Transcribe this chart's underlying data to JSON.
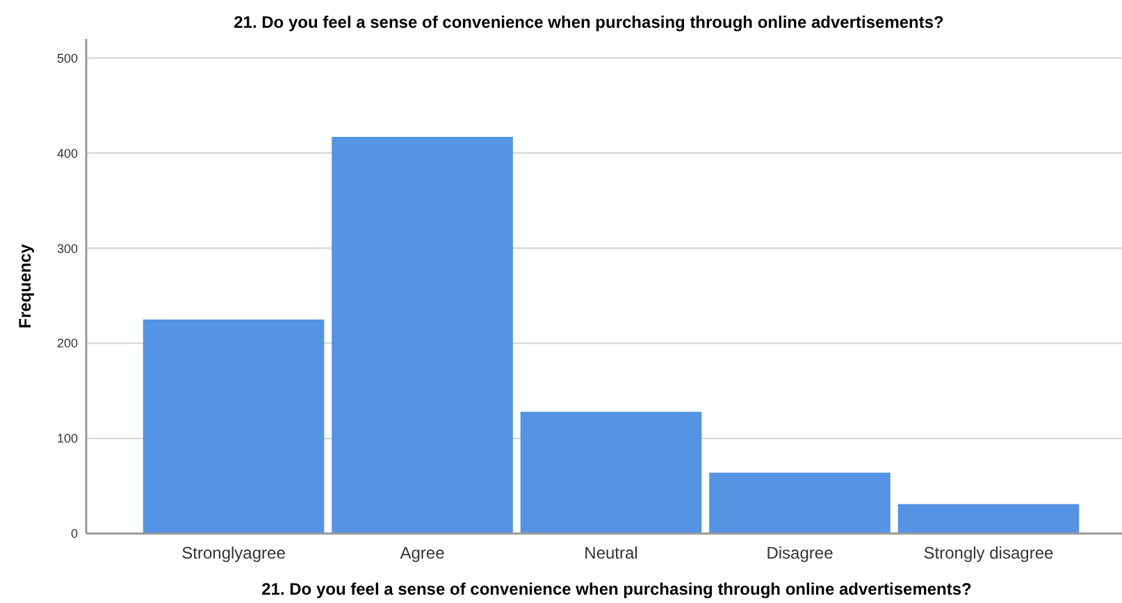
{
  "chart_data": {
    "type": "bar",
    "title": "21. Do you feel a sense of convenience when purchasing through online advertisements?",
    "xlabel": "21. Do you feel a sense of convenience when purchasing through online advertisements?",
    "ylabel": "Frequency",
    "categories": [
      "Stronglyagree",
      "Agree",
      "Neutral",
      "Disagree",
      "Strongly disagree"
    ],
    "values": [
      225,
      417,
      128,
      64,
      31
    ],
    "color": "#5594e4",
    "ylim": [
      0,
      520
    ],
    "yticks": [
      0,
      100,
      200,
      300,
      400,
      500
    ],
    "grid": "y"
  }
}
